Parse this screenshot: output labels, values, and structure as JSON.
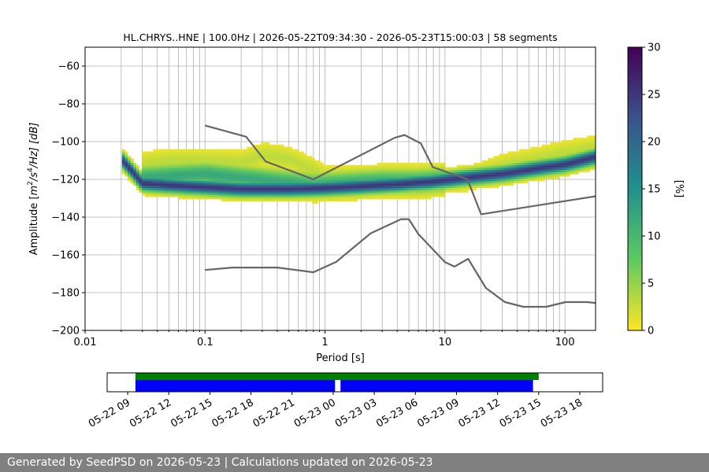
{
  "chart_data": [
    {
      "type": "heatmap",
      "title": "HL.CHRYS..HNE | 100.0Hz | 2026-05-22T09:34:30 - 2026-05-23T15:00:03 | 58 segments",
      "xlabel": "Period [s]",
      "ylabel": "Amplitude [m²/s⁴/Hz] [dB]",
      "ylabel_parts": {
        "pre": "Amplitude [",
        "m": "m",
        "sup2": "2",
        "slash_s": "/s",
        "sup4": "4",
        "post": "/Hz] [dB]"
      },
      "x_scale": "log",
      "xlim": [
        0.01,
        180
      ],
      "ylim": [
        -200,
        -50
      ],
      "x_ticks": [
        0.01,
        0.1,
        1,
        10,
        100
      ],
      "x_tick_labels": [
        "0.01",
        "0.1",
        "1",
        "10",
        "100"
      ],
      "y_ticks": [
        -60,
        -80,
        -100,
        -120,
        -140,
        -160,
        -180,
        -200
      ],
      "y_tick_labels": [
        "−60",
        "−80",
        "−100",
        "−120",
        "−140",
        "−160",
        "−180",
        "−200"
      ],
      "grid": true,
      "colorbar": {
        "label": "[%]",
        "range": [
          0,
          30
        ],
        "ticks": [
          0,
          5,
          10,
          15,
          20,
          25,
          30
        ],
        "tick_labels": [
          "0",
          "5",
          "10",
          "15",
          "20",
          "25",
          "30"
        ],
        "colors": [
          "#fde725",
          "#5ec962",
          "#21918c",
          "#3b528b",
          "#440154"
        ]
      },
      "density_bands": [
        {
          "name": "main",
          "points": [
            [
              0.02,
              -109
            ],
            [
              0.025,
              -116
            ],
            [
              0.03,
              -122
            ],
            [
              0.05,
              -123
            ],
            [
              0.1,
              -124
            ],
            [
              0.2,
              -125
            ],
            [
              0.5,
              -125
            ],
            [
              1,
              -124.5
            ],
            [
              2,
              -123.5
            ],
            [
              4,
              -122.5
            ],
            [
              8,
              -121
            ],
            [
              15,
              -119
            ],
            [
              30,
              -117
            ],
            [
              60,
              -114
            ],
            [
              100,
              -112
            ],
            [
              180,
              -108
            ]
          ],
          "percent": 25,
          "spread_db": 2.5
        },
        {
          "name": "upper",
          "points": [
            [
              0.03,
              -112
            ],
            [
              0.05,
              -110
            ],
            [
              0.1,
              -110
            ],
            [
              0.2,
              -111
            ],
            [
              0.3,
              -107
            ],
            [
              0.5,
              -109
            ],
            [
              0.8,
              -115
            ],
            [
              1,
              -119
            ],
            [
              2,
              -121
            ],
            [
              4,
              -121
            ],
            [
              8,
              -121
            ],
            [
              15,
              -120
            ],
            [
              30,
              -113
            ],
            [
              60,
              -109
            ],
            [
              100,
              -106
            ],
            [
              180,
              -103
            ]
          ],
          "percent": 3,
          "spread_db": 4
        },
        {
          "name": "middle",
          "points": [
            [
              0.03,
              -119
            ],
            [
              0.05,
              -118
            ],
            [
              0.1,
              -117
            ],
            [
              0.2,
              -119
            ],
            [
              0.4,
              -121
            ],
            [
              0.8,
              -123
            ],
            [
              1.5,
              -122
            ],
            [
              3,
              -121
            ],
            [
              6,
              -121
            ],
            [
              10,
              -120
            ]
          ],
          "percent": 12,
          "spread_db": 4
        }
      ],
      "series": [
        {
          "name": "NHNM",
          "x": [
            0.1,
            0.22,
            0.32,
            0.8,
            3.8,
            4.6,
            6.3,
            7.9,
            15.4,
            20,
            354.8
          ],
          "y": [
            -91.5,
            -97.4,
            -110.5,
            -120,
            -98,
            -96.5,
            -101,
            -113.5,
            -120,
            -138.5,
            -126
          ]
        },
        {
          "name": "NLNM",
          "x": [
            0.1,
            0.17,
            0.4,
            0.8,
            1.24,
            2.4,
            4.3,
            5,
            6,
            10,
            12,
            15.6,
            21.9,
            31.6,
            45,
            70,
            101,
            154,
            328
          ],
          "y": [
            -168,
            -166.7,
            -166.7,
            -169.2,
            -163.7,
            -148.6,
            -141.1,
            -141.1,
            -149,
            -163.8,
            -166.2,
            -162.1,
            -177.5,
            -185,
            -187.5,
            -187.5,
            -185,
            -185,
            -187.5
          ]
        }
      ]
    },
    {
      "type": "bar",
      "x_ticks": [
        "2026-05-22 09:00",
        "2026-05-22 12:00",
        "2026-05-22 15:00",
        "2026-05-22 18:00",
        "2026-05-22 21:00",
        "2026-05-23 00:00",
        "2026-05-23 03:00",
        "2026-05-23 06:00",
        "2026-05-23 09:00",
        "2026-05-23 12:00",
        "2026-05-23 15:00",
        "2026-05-23 18:00"
      ],
      "x_tick_labels": [
        "05-22 09",
        "05-22 12",
        "05-22 15",
        "05-22 18",
        "05-22 21",
        "05-23 00",
        "05-23 03",
        "05-23 06",
        "05-23 09",
        "05-23 12",
        "05-23 15",
        "05-23 18"
      ],
      "xlim": [
        "2026-05-22 07:30",
        "2026-05-23 19:40"
      ],
      "coverage": {
        "color": "#008000",
        "start": "2026-05-22 09:34",
        "end": "2026-05-23 15:00"
      },
      "segments": {
        "color": "#0000ff",
        "items": [
          {
            "start": "2026-05-22 09:34",
            "end": "2026-05-23 00:08"
          },
          {
            "start": "2026-05-23 00:32",
            "end": "2026-05-23 14:35"
          }
        ]
      }
    }
  ],
  "footer": {
    "text": "Generated by SeedPSD on 2026-05-23 | Calculations updated on 2026-05-23"
  }
}
